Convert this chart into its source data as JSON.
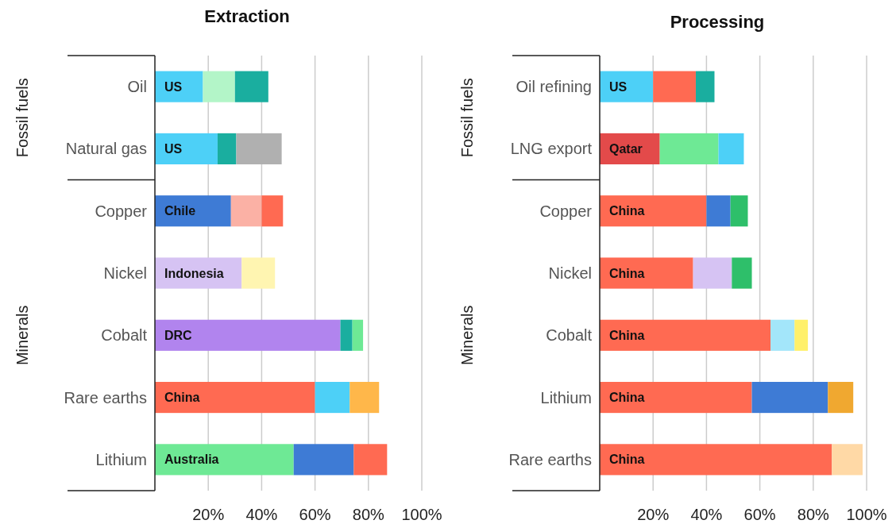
{
  "chart_data": [
    {
      "type": "bar",
      "title": "Extraction",
      "orientation": "horizontal",
      "stacked": true,
      "categories": [
        "Oil",
        "Natural gas",
        "Copper",
        "Nickel",
        "Cobalt",
        "Rare earths",
        "Lithium"
      ],
      "xlim": [
        0,
        100
      ],
      "xticks": [
        {
          "value": 20,
          "label": "20%"
        },
        {
          "value": 40,
          "label": "40%"
        },
        {
          "value": 60,
          "label": "60%"
        },
        {
          "value": 80,
          "label": "80%"
        },
        {
          "value": 100,
          "label": "100%"
        }
      ],
      "grid": "x",
      "annotations": [
        "Fossil fuels",
        "Minerals"
      ],
      "series": [
        {
          "values": [
            18,
            23.5,
            28.5,
            32.5,
            69.5,
            60,
            52
          ],
          "colors": [
            "#4dd0f7",
            "#4dd0f7",
            "#3e7bd5",
            "#d6c3f3",
            "#b184ee",
            "#ff6a52",
            "#6ee995"
          ],
          "value_labels": [
            "US",
            "US",
            "Chile",
            "Indonesia",
            "DRC",
            "China",
            "Australia"
          ]
        },
        {
          "values": [
            12,
            7,
            11.5,
            12.5,
            4.5,
            13,
            22.5
          ],
          "colors": [
            "#b3f5c8",
            "#1aae9f",
            "#fbb1a5",
            "#fff5b1",
            "#1aae9f",
            "#4dd0f7",
            "#3e7bd5"
          ]
        },
        {
          "values": [
            12.5,
            17,
            8,
            null,
            4,
            11,
            12.5
          ],
          "colors": [
            "#1aae9f",
            "#b0b0b0",
            "#ff6a52",
            null,
            "#6ee995",
            "#ffb74a",
            "#ff6a52"
          ]
        }
      ]
    },
    {
      "type": "bar",
      "title": "Processing",
      "orientation": "horizontal",
      "stacked": true,
      "categories": [
        "Oil refining",
        "LNG export",
        "Copper",
        "Nickel",
        "Cobalt",
        "Lithium",
        "Rare earths"
      ],
      "xlim": [
        0,
        100
      ],
      "xticks": [
        {
          "value": 20,
          "label": "20%"
        },
        {
          "value": 40,
          "label": "40%"
        },
        {
          "value": 60,
          "label": "60%"
        },
        {
          "value": 80,
          "label": "80%"
        },
        {
          "value": 100,
          "label": "100%"
        }
      ],
      "grid": "x",
      "annotations": [
        "Fossil fuels",
        "Minerals"
      ],
      "series": [
        {
          "values": [
            20,
            22.5,
            40,
            35,
            64,
            57,
            87
          ],
          "colors": [
            "#4dd0f7",
            "#e34a4a",
            "#ff6a52",
            "#ff6a52",
            "#ff6a52",
            "#ff6a52",
            "#ff6a52"
          ],
          "value_labels": [
            "US",
            "Qatar",
            "China",
            "China",
            "China",
            "China",
            "China"
          ]
        },
        {
          "values": [
            16,
            22,
            9,
            14.5,
            9,
            28.5,
            11.5
          ],
          "colors": [
            "#ff6a52",
            "#6ee995",
            "#3e7bd5",
            "#d6c3f3",
            "#a3e6fa",
            "#3e7bd5",
            "#ffd9a6"
          ]
        },
        {
          "values": [
            7,
            9.5,
            6.5,
            7.5,
            5,
            9.5,
            null
          ],
          "colors": [
            "#1aae9f",
            "#4dd0f7",
            "#2ebf6a",
            "#2ebf6a",
            "#fff06a",
            "#f0a830",
            null
          ]
        }
      ]
    }
  ]
}
